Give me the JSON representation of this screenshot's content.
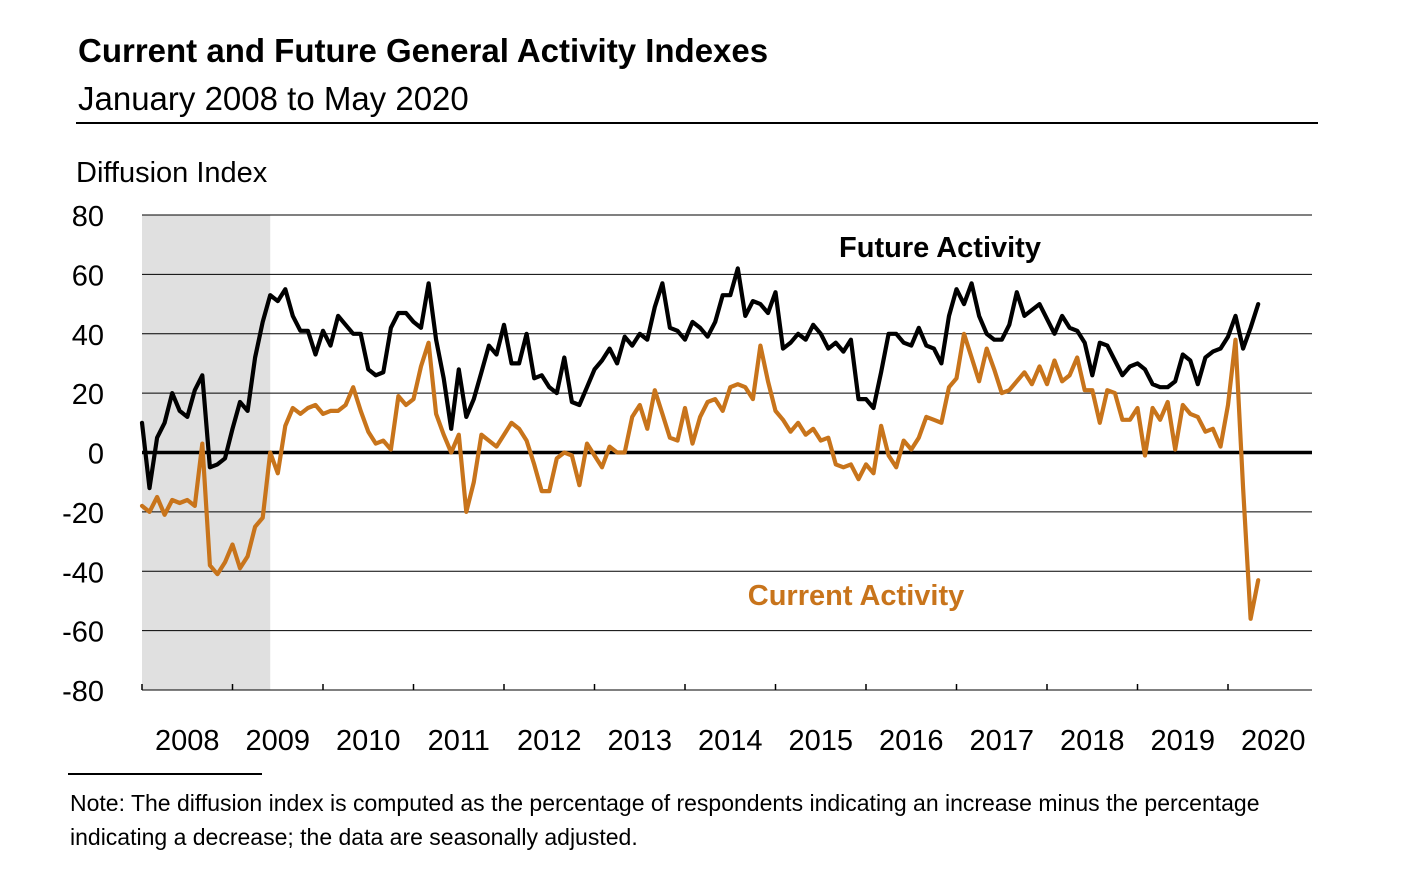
{
  "chart_data": {
    "type": "line",
    "title": "Current and Future General Activity Indexes",
    "subtitle": "January 2008 to May 2020",
    "ylabel": "Diffusion Index",
    "xlabel": "",
    "ylim": [
      -80,
      80
    ],
    "yticks": [
      -80,
      -60,
      -40,
      -20,
      0,
      20,
      40,
      60,
      80
    ],
    "xticks": [
      "2008",
      "2009",
      "2010",
      "2011",
      "2012",
      "2013",
      "2014",
      "2015",
      "2016",
      "2017",
      "2018",
      "2019",
      "2020"
    ],
    "x_start": "2008-01",
    "recession_shading": {
      "start": "2008-01",
      "end": "2009-06"
    },
    "grid": true,
    "series": [
      {
        "name": "Future Activity",
        "label": "Future Activity",
        "color": "#000000",
        "values": [
          10,
          -12,
          5,
          10,
          20,
          14,
          12,
          21,
          26,
          -5,
          -4,
          -2,
          8,
          17,
          14,
          32,
          44,
          53,
          51,
          55,
          46,
          41,
          41,
          33,
          41,
          36,
          46,
          43,
          40,
          40,
          28,
          26,
          27,
          42,
          47,
          47,
          44,
          42,
          57,
          38,
          25,
          8,
          28,
          12,
          18,
          27,
          36,
          33,
          43,
          30,
          30,
          40,
          25,
          26,
          22,
          20,
          32,
          17,
          16,
          22,
          28,
          31,
          35,
          30,
          39,
          36,
          40,
          38,
          49,
          57,
          42,
          41,
          38,
          44,
          42,
          39,
          44,
          53,
          53,
          62,
          46,
          51,
          50,
          47,
          54,
          35,
          37,
          40,
          38,
          43,
          40,
          35,
          37,
          34,
          38,
          18,
          18,
          15,
          27,
          40,
          40,
          37,
          36,
          42,
          36,
          35,
          30,
          46,
          55,
          50,
          57,
          46,
          40,
          38,
          38,
          43,
          54,
          46,
          48,
          50,
          45,
          40,
          46,
          42,
          41,
          37,
          26,
          37,
          36,
          31,
          26,
          29,
          30,
          28,
          23,
          22,
          22,
          24,
          33,
          31,
          23,
          32,
          34,
          35,
          39,
          46,
          35,
          42,
          50
        ]
      },
      {
        "name": "Current Activity",
        "label": "Current Activity",
        "color": "#C8741B",
        "values": [
          -18,
          -20,
          -15,
          -21,
          -16,
          -17,
          -16,
          -18,
          3,
          -38,
          -41,
          -37,
          -31,
          -39,
          -35,
          -25,
          -22,
          0,
          -7,
          9,
          15,
          13,
          15,
          16,
          13,
          14,
          14,
          16,
          22,
          14,
          7,
          3,
          4,
          1,
          19,
          16,
          18,
          29,
          37,
          13,
          6,
          0,
          6,
          -20,
          -10,
          6,
          4,
          2,
          6,
          10,
          8,
          4,
          -4,
          -13,
          -13,
          -2,
          0,
          -1,
          -11,
          3,
          -1,
          -5,
          2,
          0,
          0,
          12,
          16,
          8,
          21,
          13,
          5,
          4,
          15,
          3,
          12,
          17,
          18,
          14,
          22,
          23,
          22,
          18,
          36,
          24,
          14,
          11,
          7,
          10,
          6,
          8,
          4,
          5,
          -4,
          -5,
          -4,
          -9,
          -4,
          -7,
          9,
          -1,
          -5,
          4,
          1,
          5,
          12,
          11,
          10,
          22,
          25,
          40,
          32,
          24,
          35,
          28,
          20,
          21,
          24,
          27,
          23,
          29,
          23,
          31,
          24,
          26,
          32,
          21,
          21,
          10,
          21,
          20,
          11,
          11,
          15,
          -1,
          15,
          11,
          17,
          1,
          16,
          13,
          12,
          7,
          8,
          2,
          16,
          38,
          -12,
          -56,
          -43
        ]
      }
    ]
  },
  "note": "Note: The diffusion index is computed as the percentage of respondents indicating an increase minus the percentage indicating a decrease; the data are seasonally adjusted."
}
